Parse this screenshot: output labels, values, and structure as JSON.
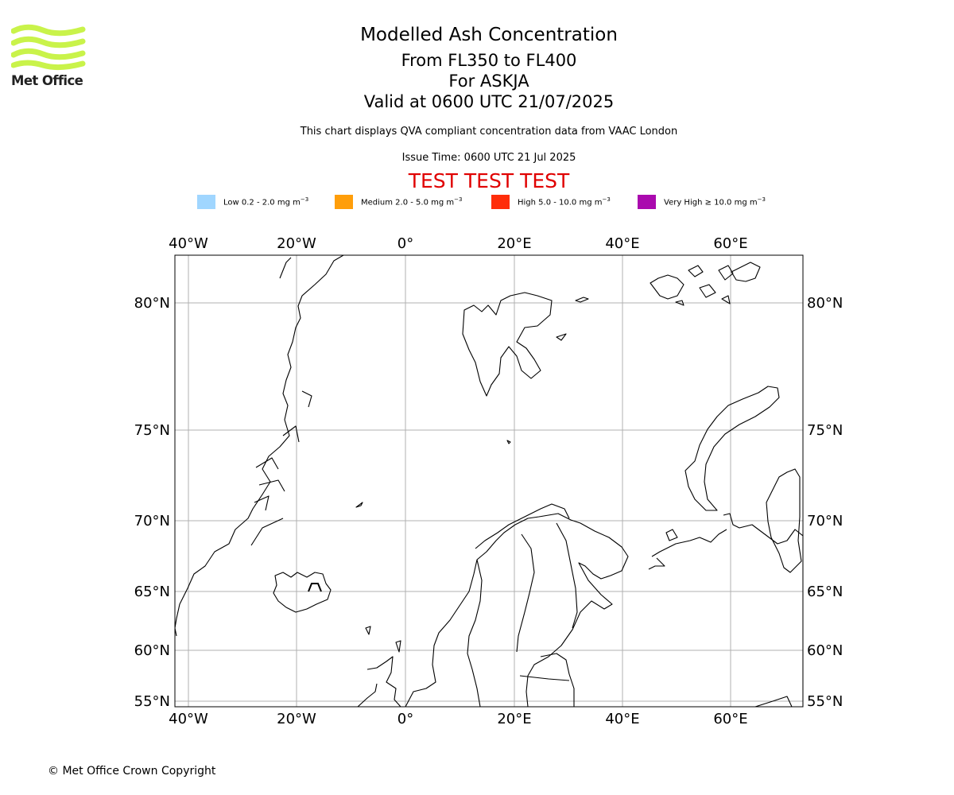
{
  "brand": {
    "name": "Met Office",
    "logo_color": "#c9f34a"
  },
  "chart": {
    "title": "Modelled Ash Concentration",
    "flight_level": "From FL350 to FL400",
    "volcano": "For ASKJA",
    "valid_time": "Valid at 0600 UTC 21/07/2025",
    "description": "This chart displays QVA compliant concentration data from VAAC London",
    "issue_time": "Issue Time: 0600 UTC 21 Jul 2025",
    "test_banner": "TEST TEST TEST"
  },
  "legend": [
    {
      "label": "Low 0.2 - 2.0 mg m",
      "unit_exp": "−3",
      "color": "#a0d6ff"
    },
    {
      "label": "Medium 2.0 - 5.0 mg m",
      "unit_exp": "−3",
      "color": "#ff9e0a"
    },
    {
      "label": "High 5.0 - 10.0 mg m",
      "unit_exp": "−3",
      "color": "#ff2d0a"
    },
    {
      "label": "Very High  ≥  10.0 mg m",
      "unit_exp": "−3",
      "color": "#aa0aae"
    }
  ],
  "map": {
    "longitude_labels": [
      "40°W",
      "20°W",
      "0°",
      "20°E",
      "40°E",
      "60°E"
    ],
    "latitude_labels": [
      "80°N",
      "75°N",
      "70°N",
      "65°N",
      "60°N",
      "55°N"
    ],
    "volcano_marker": "volcano-triangle-icon",
    "grid_color": "#b0b0b0"
  },
  "footer": {
    "copyright": "© Met Office Crown Copyright"
  }
}
